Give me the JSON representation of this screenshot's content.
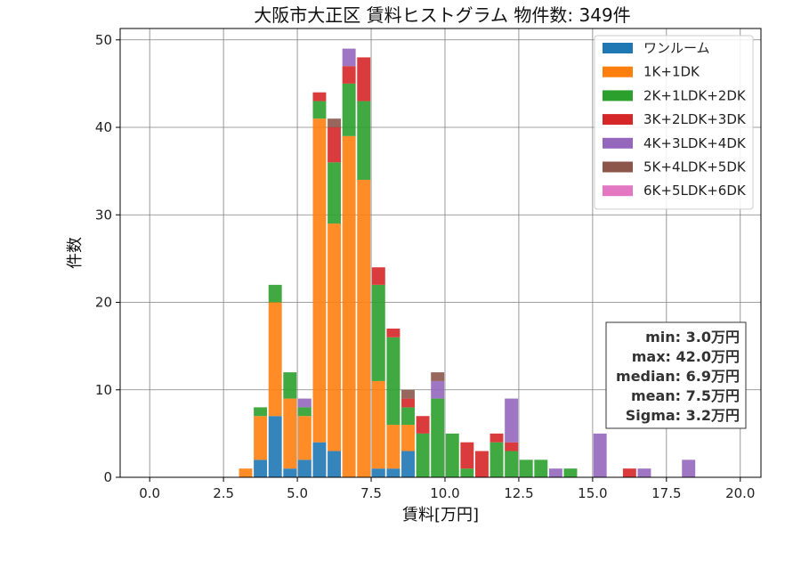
{
  "chart_data": {
    "type": "bar",
    "stacked": true,
    "title": "大阪市大正区 賃料ヒストグラム 物件数: 349件",
    "xlabel": "賃料[万円]",
    "ylabel": "件数",
    "xlim": [
      -1.0,
      20.7
    ],
    "ylim": [
      0,
      51.3
    ],
    "xticks": [
      "0.0",
      "2.5",
      "5.0",
      "7.5",
      "10.0",
      "12.5",
      "15.0",
      "17.5",
      "20.0"
    ],
    "yticks": [
      "0",
      "10",
      "20",
      "30",
      "40",
      "50"
    ],
    "grid": true,
    "legend_position": "top-right",
    "bin_width": 0.5,
    "bin_starts": [
      3.0,
      3.5,
      4.0,
      4.5,
      5.0,
      5.5,
      6.0,
      6.5,
      7.0,
      7.5,
      8.0,
      8.5,
      9.0,
      9.5,
      10.0,
      10.5,
      11.0,
      11.5,
      12.0,
      12.5,
      13.0,
      13.5,
      14.0,
      15.0,
      16.0,
      16.5,
      18.0
    ],
    "series": [
      {
        "name": "ワンルーム",
        "color": "#1f77b4",
        "values": [
          0,
          2,
          7,
          1,
          2,
          4,
          3,
          0,
          0,
          1,
          1,
          3,
          0,
          0,
          0,
          0,
          0,
          0,
          0,
          0,
          0,
          0,
          0,
          0,
          0,
          0,
          0
        ]
      },
      {
        "name": "1K+1DK",
        "color": "#ff7f0e",
        "values": [
          1,
          5,
          13,
          8,
          5,
          37,
          26,
          39,
          34,
          10,
          5,
          3,
          0,
          0,
          0,
          0,
          0,
          0,
          0,
          0,
          0,
          0,
          0,
          0,
          0,
          0,
          0
        ]
      },
      {
        "name": "2K+1LDK+2DK",
        "color": "#2ca02c",
        "values": [
          0,
          1,
          2,
          3,
          1,
          2,
          7,
          6,
          9,
          11,
          10,
          2,
          5,
          9,
          5,
          1,
          0,
          4,
          3,
          2,
          2,
          0,
          1,
          0,
          0,
          0,
          0
        ]
      },
      {
        "name": "3K+2LDK+3DK",
        "color": "#d62728",
        "values": [
          0,
          0,
          0,
          0,
          0,
          1,
          4,
          2,
          5,
          2,
          1,
          1,
          2,
          0,
          0,
          3,
          3,
          1,
          1,
          0,
          0,
          0,
          0,
          0,
          1,
          0,
          0
        ]
      },
      {
        "name": "4K+3LDK+4DK",
        "color": "#9467bd",
        "values": [
          0,
          0,
          0,
          0,
          1,
          0,
          0,
          2,
          0,
          0,
          0,
          0,
          0,
          2,
          0,
          0,
          0,
          0,
          5,
          0,
          0,
          1,
          0,
          5,
          0,
          1,
          2
        ]
      },
      {
        "name": "5K+4LDK+5DK",
        "color": "#8c564b",
        "values": [
          0,
          0,
          0,
          0,
          0,
          0,
          1,
          0,
          0,
          0,
          0,
          1,
          0,
          1,
          0,
          0,
          0,
          0,
          0,
          0,
          0,
          0,
          0,
          0,
          0,
          0,
          0
        ]
      },
      {
        "name": "6K+5LDK+6DK",
        "color": "#e377c2",
        "values": [
          0,
          0,
          0,
          0,
          0,
          0,
          0,
          0,
          0,
          0,
          0,
          0,
          0,
          0,
          0,
          0,
          0,
          0,
          0,
          0,
          0,
          0,
          0,
          0,
          0,
          0,
          0
        ]
      }
    ],
    "stats": [
      "min: 3.0万円",
      "max: 42.0万円",
      "median: 6.9万円",
      "mean: 7.5万円",
      "Sigma: 3.2万円"
    ]
  }
}
